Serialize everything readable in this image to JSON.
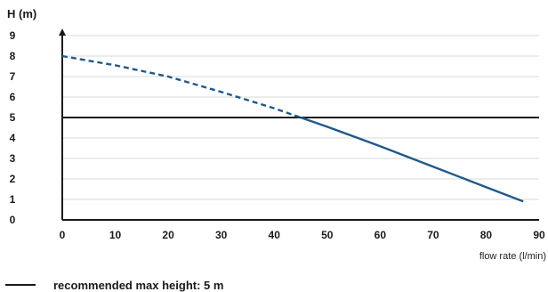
{
  "chart_data": {
    "type": "line",
    "ylabel": "H (m)",
    "xlabel": "flow rate (l/min)",
    "xlim": [
      0,
      90
    ],
    "ylim": [
      0,
      9
    ],
    "x_ticks": [
      0,
      10,
      20,
      30,
      40,
      50,
      60,
      70,
      80,
      90
    ],
    "y_ticks": [
      0,
      1,
      2,
      3,
      4,
      5,
      6,
      7,
      8,
      9
    ],
    "grid": true,
    "series": [
      {
        "style": "dashed",
        "color": "#1f5a8c",
        "x": [
          0,
          10,
          20,
          30,
          40,
          45
        ],
        "y": [
          8.0,
          7.55,
          7.0,
          6.25,
          5.45,
          5.0
        ]
      },
      {
        "style": "solid",
        "color": "#1f5a8c",
        "x": [
          45,
          50,
          60,
          70,
          80,
          87
        ],
        "y": [
          5.0,
          4.55,
          3.6,
          2.6,
          1.6,
          0.9
        ]
      }
    ],
    "reference_line": {
      "y": 5,
      "color": "#1a1a1a",
      "label": "recommended max height: 5 m"
    }
  },
  "legend": {
    "label": "recommended max height: 5 m"
  }
}
